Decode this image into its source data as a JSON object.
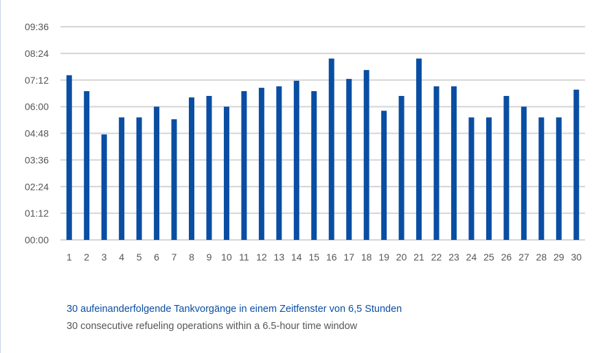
{
  "colors": {
    "bar": "#0a4ea3",
    "grid": "#d4d4d4",
    "tick_text": "#555555",
    "caption_de": "#0a4ea3",
    "caption_en": "#555555"
  },
  "captions": {
    "de": "30 aufeinanderfolgende Tankvorgänge in einem Zeitfenster von 6,5 Stunden",
    "en": "30 consecutive refueling operations within a 6.5-hour time window"
  },
  "chart_data": {
    "type": "bar",
    "title": "",
    "xlabel": "",
    "ylabel": "",
    "categories": [
      "1",
      "2",
      "3",
      "4",
      "5",
      "6",
      "7",
      "8",
      "9",
      "10",
      "11",
      "12",
      "13",
      "14",
      "15",
      "16",
      "17",
      "18",
      "19",
      "20",
      "21",
      "22",
      "23",
      "24",
      "25",
      "26",
      "27",
      "28",
      "29",
      "30"
    ],
    "values_minutes": [
      445,
      402,
      285,
      331,
      331,
      360,
      326,
      385,
      389,
      360,
      402,
      411,
      415,
      430,
      402,
      490,
      435,
      459,
      349,
      389,
      490,
      415,
      415,
      331,
      331,
      389,
      360,
      331,
      331,
      406
    ],
    "value_format": "mm:ss",
    "ylim_minutes": [
      0,
      576
    ],
    "y_ticks": [
      "00:00",
      "01:12",
      "02:24",
      "03:36",
      "04:48",
      "06:00",
      "07:12",
      "08:24",
      "09:36"
    ],
    "grid": true,
    "legend": "none"
  }
}
